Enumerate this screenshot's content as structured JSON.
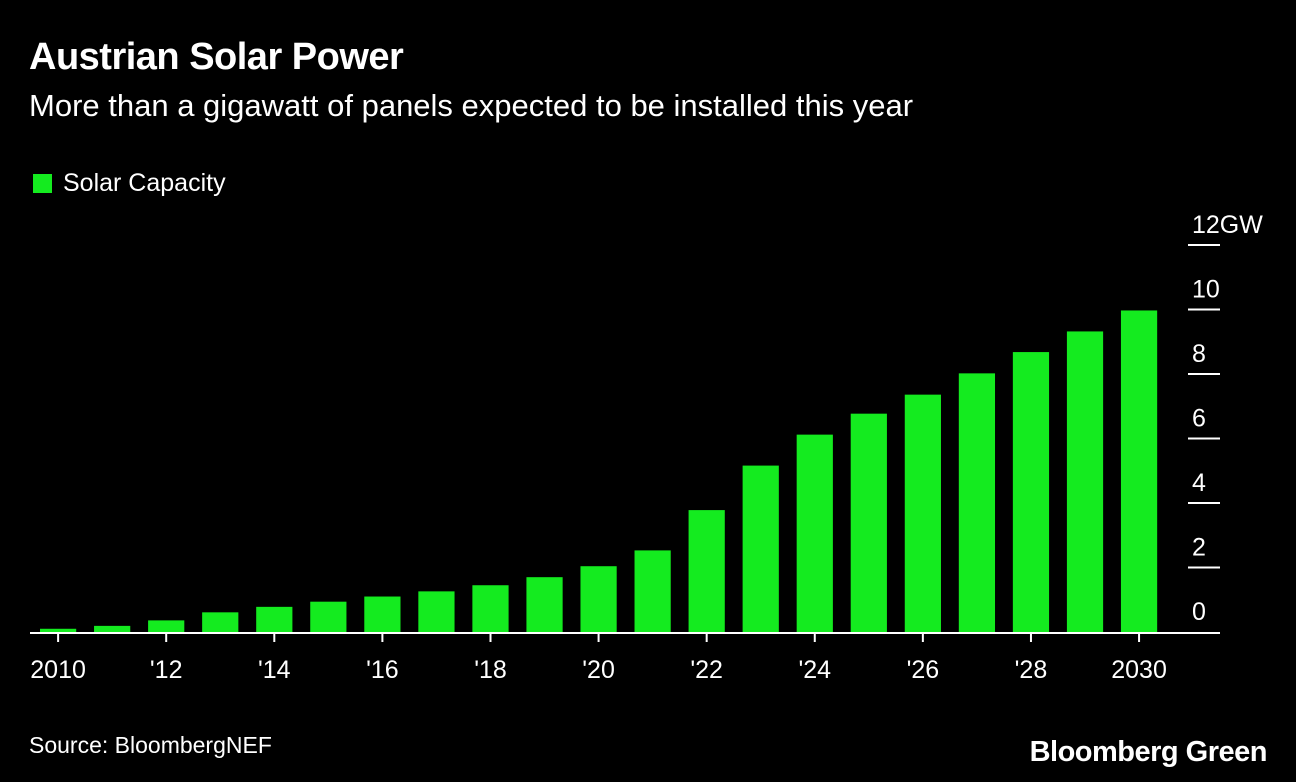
{
  "colors": {
    "background": "#000000",
    "bar": "#14eb1f",
    "text": "#ffffff"
  },
  "chart_data": {
    "type": "bar",
    "title": "Austrian Solar Power",
    "subtitle": "More than a gigawatt of panels expected to be installed this year",
    "legend": [
      "Solar Capacity"
    ],
    "legend_position": "top-left",
    "source": "Source: BloombergNEF",
    "brand": "Bloomberg Green",
    "ylabel": "GW",
    "ylim": [
      0,
      12
    ],
    "yticks": [
      0,
      2,
      4,
      6,
      8,
      10,
      12
    ],
    "ytick_labels": [
      "0",
      "2",
      "4",
      "6",
      "8",
      "10",
      "12GW"
    ],
    "y_axis_side": "right",
    "categories": [
      2010,
      2011,
      2012,
      2013,
      2014,
      2015,
      2016,
      2017,
      2018,
      2019,
      2020,
      2021,
      2022,
      2023,
      2024,
      2025,
      2026,
      2027,
      2028,
      2029,
      2030
    ],
    "xtick_labels": [
      "2010",
      "'12",
      "'14",
      "'16",
      "'18",
      "'20",
      "'22",
      "'24",
      "'26",
      "'28",
      "2030"
    ],
    "xtick_years": [
      2010,
      2012,
      2014,
      2016,
      2018,
      2020,
      2022,
      2024,
      2026,
      2028,
      2030
    ],
    "series": [
      {
        "name": "Solar Capacity",
        "values": [
          0.1,
          0.19,
          0.36,
          0.61,
          0.78,
          0.94,
          1.1,
          1.26,
          1.45,
          1.7,
          2.04,
          2.53,
          3.78,
          5.16,
          6.12,
          6.77,
          7.36,
          8.02,
          8.68,
          9.32,
          9.97
        ]
      }
    ]
  }
}
